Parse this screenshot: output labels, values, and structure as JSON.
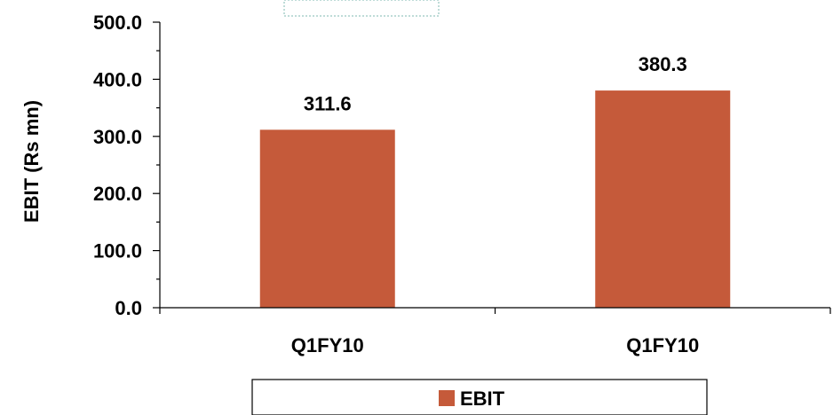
{
  "chart_data": {
    "type": "bar",
    "categories": [
      "Q1FY10",
      "Q1FY10"
    ],
    "series": [
      {
        "name": "EBIT",
        "values": [
          311.6,
          380.3
        ],
        "data_labels": [
          "311.6",
          "380.3"
        ],
        "color": "#C55A3A"
      }
    ],
    "title": "",
    "xlabel": "",
    "ylabel": "EBIT (Rs mn)",
    "ylim": [
      0,
      500
    ],
    "y_ticks": [
      0,
      100,
      200,
      300,
      400,
      500
    ],
    "y_tick_labels": [
      "0.0",
      "100.0",
      "200.0",
      "300.0",
      "400.0",
      "500.0"
    ],
    "y_minor_ticks_per_major": 2,
    "grid": false,
    "legend": {
      "position": "bottom",
      "entries": [
        "EBIT"
      ]
    },
    "colors": {
      "bar": "#C55A3A",
      "axis": "#000000",
      "legend_border": "#000000",
      "top_box_border": "#7FB8B0"
    }
  }
}
